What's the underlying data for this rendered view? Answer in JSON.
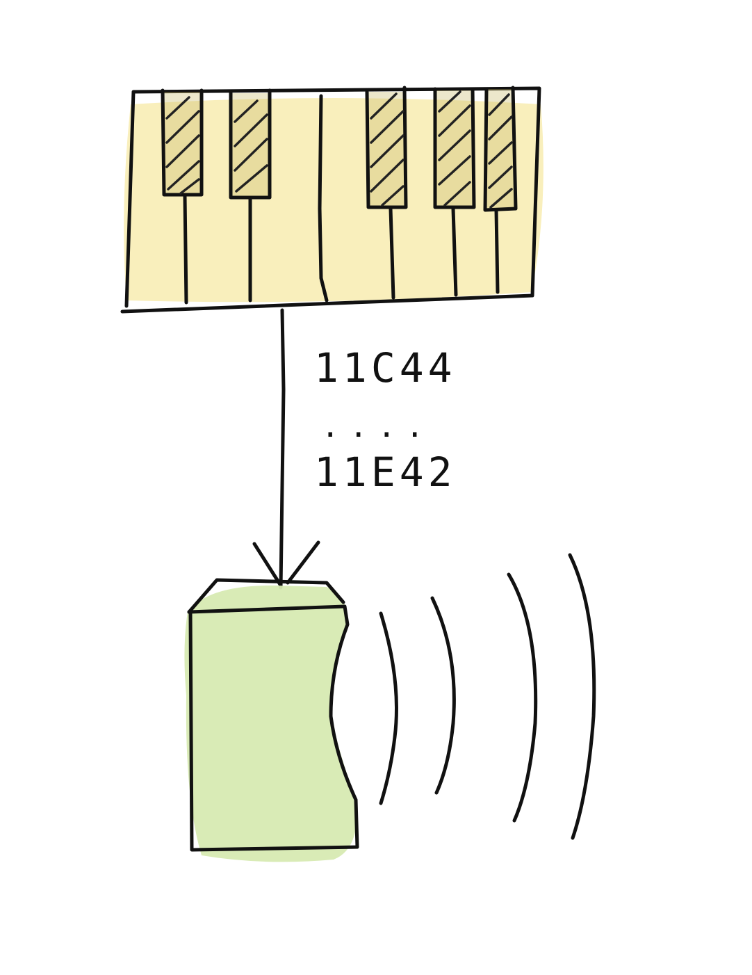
{
  "diagram": {
    "nodes": [
      {
        "id": "keyboard",
        "icon": "piano-keyboard-icon",
        "fill_color": "#f8ecb0"
      },
      {
        "id": "speaker",
        "icon": "speaker-icon",
        "fill_color": "#d7eab2"
      }
    ],
    "edges": [
      {
        "from": "keyboard",
        "to": "speaker",
        "style": "arrow"
      }
    ],
    "edge_label": {
      "start": "11C44",
      "ellipsis": "....",
      "end": "11E42"
    },
    "sound_wave_count": 4,
    "ink_color": "#111111"
  }
}
